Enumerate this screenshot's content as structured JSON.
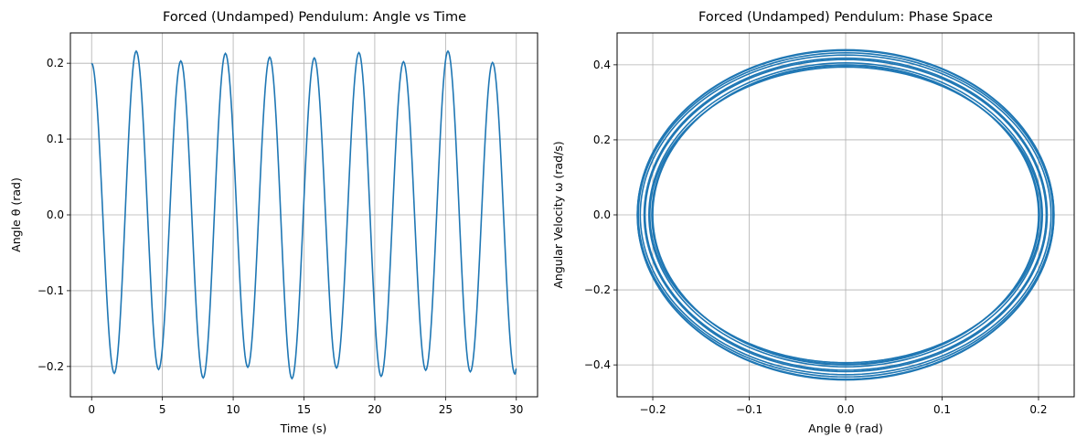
{
  "figure": {
    "background": "#ffffff",
    "line_color": "#1f77b4",
    "grid_color": "#b0b0b0"
  },
  "chart_data": [
    {
      "type": "line",
      "title": "Forced (Undamped) Pendulum: Angle vs Time",
      "xlabel": "Time (s)",
      "ylabel": "Angle θ (rad)",
      "xlim": [
        -1.5,
        31.5
      ],
      "ylim": [
        -0.24,
        0.24
      ],
      "xticks": [
        0,
        5,
        10,
        15,
        20,
        25,
        30
      ],
      "xtick_labels": [
        "0",
        "5",
        "10",
        "15",
        "20",
        "25",
        "30"
      ],
      "yticks": [
        -0.2,
        -0.1,
        0.0,
        0.1,
        0.2
      ],
      "ytick_labels": [
        "−0.2",
        "−0.1",
        "0.0",
        "0.1",
        "0.2"
      ],
      "grid": true,
      "legend": "none",
      "series": [
        {
          "x": [
            0,
            1.6,
            3.15,
            4.73,
            6.3,
            7.88,
            9.45,
            11.03,
            12.58,
            14.15,
            15.73,
            17.3,
            18.88,
            20.45,
            22.03,
            23.6,
            25.17,
            26.75,
            28.32,
            29.9,
            30
          ],
          "y": [
            0.2,
            -0.209,
            0.216,
            -0.204,
            0.203,
            -0.215,
            0.213,
            -0.201,
            0.208,
            -0.216,
            0.207,
            -0.202,
            0.214,
            -0.213,
            0.202,
            -0.205,
            0.216,
            -0.207,
            0.201,
            -0.21,
            -0.203
          ]
        }
      ]
    },
    {
      "type": "line",
      "title": "Forced (Undamped) Pendulum: Phase Space",
      "xlabel": "Angle θ (rad)",
      "ylabel": "Angular Velocity ω (rad/s)",
      "xlim": [
        -0.237,
        0.237
      ],
      "ylim": [
        -0.485,
        0.485
      ],
      "xticks": [
        -0.2,
        -0.1,
        0.0,
        0.1,
        0.2
      ],
      "xtick_labels": [
        "−0.2",
        "−0.1",
        "0.0",
        "0.1",
        "0.2"
      ],
      "yticks": [
        -0.4,
        -0.2,
        0.0,
        0.2,
        0.4
      ],
      "ytick_labels": [
        "−0.4",
        "−0.2",
        "0.0",
        "0.2",
        "0.4"
      ],
      "grid": true,
      "legend": "none",
      "series": [
        {
          "orbits": [
            {
              "theta_amp": 0.2,
              "omega_amp": 0.4
            },
            {
              "theta_amp": 0.209,
              "omega_amp": 0.418
            },
            {
              "theta_amp": 0.216,
              "omega_amp": 0.438
            },
            {
              "theta_amp": 0.204,
              "omega_amp": 0.405
            },
            {
              "theta_amp": 0.203,
              "omega_amp": 0.394
            },
            {
              "theta_amp": 0.215,
              "omega_amp": 0.432
            },
            {
              "theta_amp": 0.213,
              "omega_amp": 0.426
            },
            {
              "theta_amp": 0.201,
              "omega_amp": 0.398
            },
            {
              "theta_amp": 0.208,
              "omega_amp": 0.414
            },
            {
              "theta_amp": 0.216,
              "omega_amp": 0.44
            }
          ]
        }
      ]
    }
  ]
}
